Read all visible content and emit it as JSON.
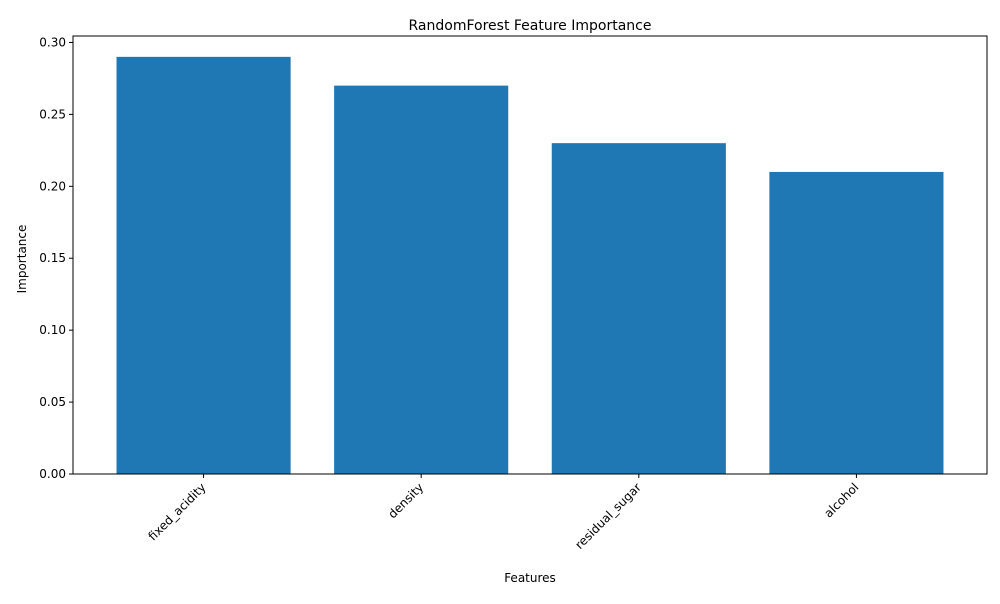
{
  "chart_data": {
    "type": "bar",
    "title": "RandomForest Feature Importance",
    "xlabel": "Features",
    "ylabel": "Importance",
    "categories": [
      "fixed_acidity",
      "density",
      "residual_sugar",
      "alcohol"
    ],
    "values": [
      0.29,
      0.27,
      0.23,
      0.21
    ],
    "ylim": [
      0,
      0.3045
    ],
    "yticks": [
      "0.00",
      "0.05",
      "0.10",
      "0.15",
      "0.20",
      "0.25",
      "0.30"
    ],
    "bar_color": "#1f77b4",
    "grid": false,
    "legend": "none"
  }
}
